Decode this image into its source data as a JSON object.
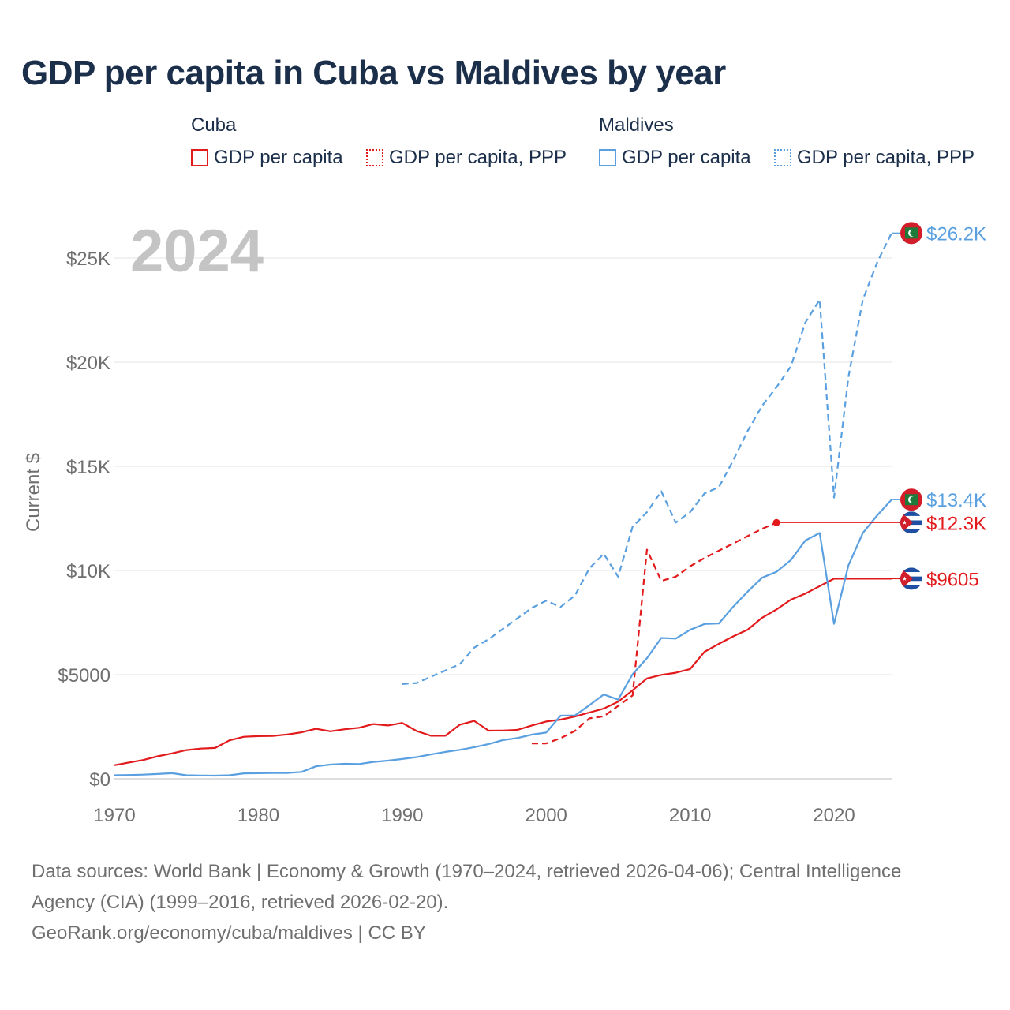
{
  "title": "GDP per capita in Cuba vs Maldives by year",
  "legend": {
    "groups": [
      {
        "name": "Cuba",
        "items": [
          {
            "label": "GDP per capita",
            "color": "#e31a1c",
            "style": "solid"
          },
          {
            "label": "GDP per capita, PPP",
            "color": "#e31a1c",
            "style": "dotted"
          }
        ]
      },
      {
        "name": "Maldives",
        "items": [
          {
            "label": "GDP per capita",
            "color": "#5aa0e0",
            "style": "solid"
          },
          {
            "label": "GDP per capita, PPP",
            "color": "#5aa0e0",
            "style": "dotted"
          }
        ]
      }
    ]
  },
  "footer": {
    "line1": "Data sources: World Bank | Economy & Growth (1970–2024, retrieved 2026-04-06); Central Intelligence",
    "line2": "Agency (CIA) (1999–2016, retrieved 2026-02-20).",
    "line3": "GeoRank.org/economy/cuba/maldives | CC BY"
  },
  "chart_data": {
    "type": "line",
    "title": "GDP per capita in Cuba vs Maldives by year",
    "year_watermark": "2024",
    "ylabel": "Current $",
    "xlabel": "",
    "xlim": [
      1970,
      2024
    ],
    "ylim": [
      0,
      27000
    ],
    "x_ticks": [
      {
        "value": 1970,
        "label": "1970"
      },
      {
        "value": 1980,
        "label": "1980"
      },
      {
        "value": 1990,
        "label": "1990"
      },
      {
        "value": 2000,
        "label": "2000"
      },
      {
        "value": 2010,
        "label": "2010"
      },
      {
        "value": 2020,
        "label": "2020"
      }
    ],
    "y_ticks": [
      {
        "value": 0,
        "label": "$0"
      },
      {
        "value": 5000,
        "label": "$5000"
      },
      {
        "value": 10000,
        "label": "$10K"
      },
      {
        "value": 15000,
        "label": "$15K"
      },
      {
        "value": 20000,
        "label": "$20K"
      },
      {
        "value": 25000,
        "label": "$25K"
      }
    ],
    "grid": true,
    "series": [
      {
        "name": "Cuba GDP per capita",
        "country": "Cuba",
        "color": "#e31a1c",
        "style": "solid",
        "end_label": "$9605",
        "flag": "cuba",
        "x": [
          1970,
          1971,
          1972,
          1973,
          1974,
          1975,
          1976,
          1977,
          1978,
          1979,
          1980,
          1981,
          1982,
          1983,
          1984,
          1985,
          1986,
          1987,
          1988,
          1989,
          1990,
          1991,
          1992,
          1993,
          1994,
          1995,
          1996,
          1997,
          1998,
          1999,
          2000,
          2001,
          2002,
          2003,
          2004,
          2005,
          2006,
          2007,
          2008,
          2009,
          2010,
          2011,
          2012,
          2013,
          2014,
          2015,
          2016,
          2017,
          2018,
          2019,
          2020,
          2021,
          2022,
          2023,
          2024
        ],
        "values": [
          650,
          780,
          900,
          1080,
          1220,
          1380,
          1450,
          1480,
          1850,
          2020,
          2050,
          2060,
          2130,
          2230,
          2400,
          2280,
          2380,
          2450,
          2630,
          2560,
          2680,
          2290,
          2070,
          2070,
          2600,
          2780,
          2310,
          2320,
          2350,
          2560,
          2750,
          2840,
          2990,
          3180,
          3370,
          3700,
          4250,
          4820,
          4990,
          5090,
          5270,
          6100,
          6480,
          6840,
          7160,
          7730,
          8130,
          8600,
          8890,
          9250,
          9605,
          9605,
          9605,
          9605,
          9605
        ]
      },
      {
        "name": "Cuba GDP per capita, PPP",
        "country": "Cuba",
        "color": "#e31a1c",
        "style": "dashed",
        "end_label": "$12.3K",
        "flag": "cuba",
        "x": [
          1999,
          2000,
          2001,
          2002,
          2003,
          2004,
          2005,
          2006,
          2007,
          2008,
          2009,
          2010,
          2011,
          2012,
          2013,
          2014,
          2015,
          2016
        ],
        "values": [
          1700,
          1700,
          1950,
          2300,
          2900,
          3000,
          3500,
          4000,
          11000,
          9500,
          9700,
          10200,
          10600,
          10950,
          11300,
          11650,
          12000,
          12300
        ]
      },
      {
        "name": "Maldives GDP per capita",
        "country": "Maldives",
        "color": "#5aa0e0",
        "style": "solid",
        "end_label": "$13.4K",
        "flag": "maldives",
        "x": [
          1970,
          1971,
          1972,
          1973,
          1974,
          1975,
          1976,
          1977,
          1978,
          1979,
          1980,
          1981,
          1982,
          1983,
          1984,
          1985,
          1986,
          1987,
          1988,
          1989,
          1990,
          1991,
          1992,
          1993,
          1994,
          1995,
          1996,
          1997,
          1998,
          1999,
          2000,
          2001,
          2002,
          2003,
          2004,
          2005,
          2006,
          2007,
          2008,
          2009,
          2010,
          2011,
          2012,
          2013,
          2014,
          2015,
          2016,
          2017,
          2018,
          2019,
          2020,
          2021,
          2022,
          2023,
          2024
        ],
        "values": [
          170,
          180,
          200,
          230,
          270,
          170,
          160,
          150,
          170,
          260,
          270,
          280,
          280,
          330,
          600,
          680,
          720,
          710,
          810,
          870,
          950,
          1040,
          1170,
          1290,
          1390,
          1520,
          1670,
          1860,
          1960,
          2120,
          2220,
          3030,
          3040,
          3530,
          4050,
          3800,
          5020,
          5790,
          6760,
          6730,
          7150,
          7430,
          7460,
          8270,
          8990,
          9650,
          9940,
          10500,
          11440,
          11800,
          7440,
          10250,
          11800,
          12650,
          13400
        ]
      },
      {
        "name": "Maldives GDP per capita, PPP",
        "country": "Maldives",
        "color": "#5aa0e0",
        "style": "dashed",
        "end_label": "$26.2K",
        "flag": "maldives",
        "x": [
          1990,
          1991,
          1992,
          1993,
          1994,
          1995,
          1996,
          1997,
          1998,
          1999,
          2000,
          2001,
          2002,
          2003,
          2004,
          2005,
          2006,
          2007,
          2008,
          2009,
          2010,
          2011,
          2012,
          2013,
          2014,
          2015,
          2016,
          2017,
          2018,
          2019,
          2020,
          2021,
          2022,
          2023,
          2024
        ],
        "values": [
          4550,
          4600,
          4900,
          5200,
          5500,
          6300,
          6700,
          7200,
          7700,
          8200,
          8550,
          8250,
          8800,
          10100,
          10800,
          9700,
          12100,
          12800,
          13800,
          12300,
          12800,
          13700,
          14000,
          15300,
          16700,
          17900,
          18800,
          19800,
          21900,
          23000,
          13500,
          19300,
          23000,
          24800,
          26200
        ]
      }
    ]
  }
}
